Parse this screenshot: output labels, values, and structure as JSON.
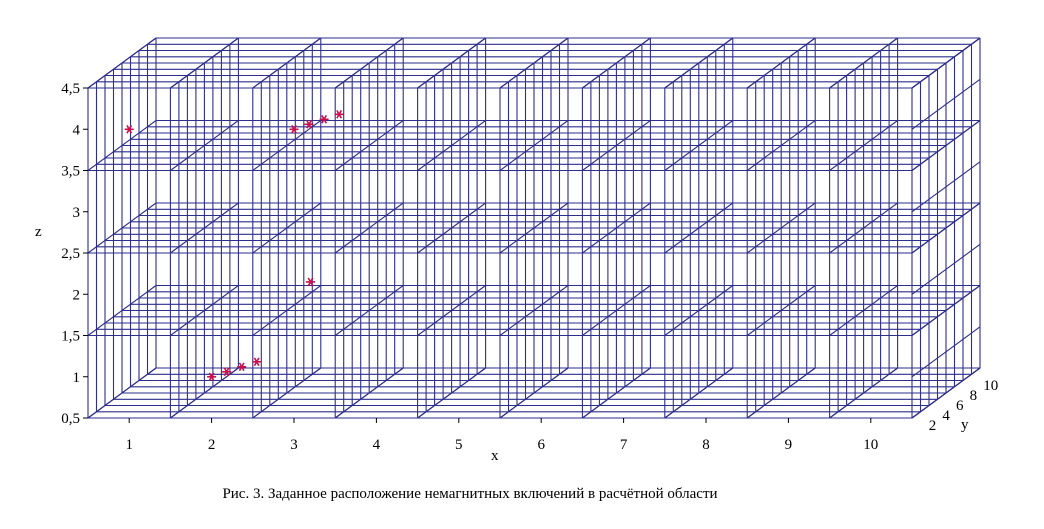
{
  "caption": "Рис. 3. Заданное расположение немагнитных включений в расчётной области",
  "chart_data": {
    "type": "scatter",
    "projection": "3d",
    "title": "",
    "xlabel": "x",
    "ylabel": "y",
    "zlabel": "z",
    "x_ticks": [
      "1",
      "2",
      "3",
      "4",
      "5",
      "6",
      "7",
      "8",
      "9",
      "10"
    ],
    "y_ticks": [
      "2",
      "4",
      "6",
      "8",
      "10"
    ],
    "z_ticks": [
      "0,5",
      "1",
      "1,5",
      "2",
      "2,5",
      "3",
      "3,5",
      "4",
      "4,5"
    ],
    "xlim": [
      0.5,
      10.5
    ],
    "ylim": [
      1,
      11
    ],
    "zlim": [
      0.5,
      4.5
    ],
    "grid": true,
    "grid_color": "#2e2e8c",
    "marker": "*",
    "marker_color": "#c8104a",
    "series": [
      {
        "points": [
          {
            "x": 1.0,
            "y": 1,
            "z": 4
          },
          {
            "x": 3.0,
            "y": 1,
            "z": 4
          },
          {
            "x": 3.1,
            "y": 2,
            "z": 4
          },
          {
            "x": 3.2,
            "y": 3,
            "z": 4
          },
          {
            "x": 3.3,
            "y": 4,
            "z": 4
          },
          {
            "x": 3.2,
            "y": 1,
            "z": 2.15
          },
          {
            "x": 2.0,
            "y": 1,
            "z": 1
          },
          {
            "x": 2.1,
            "y": 2,
            "z": 1
          },
          {
            "x": 2.2,
            "y": 3,
            "z": 1
          },
          {
            "x": 2.3,
            "y": 4,
            "z": 1
          }
        ]
      }
    ]
  }
}
